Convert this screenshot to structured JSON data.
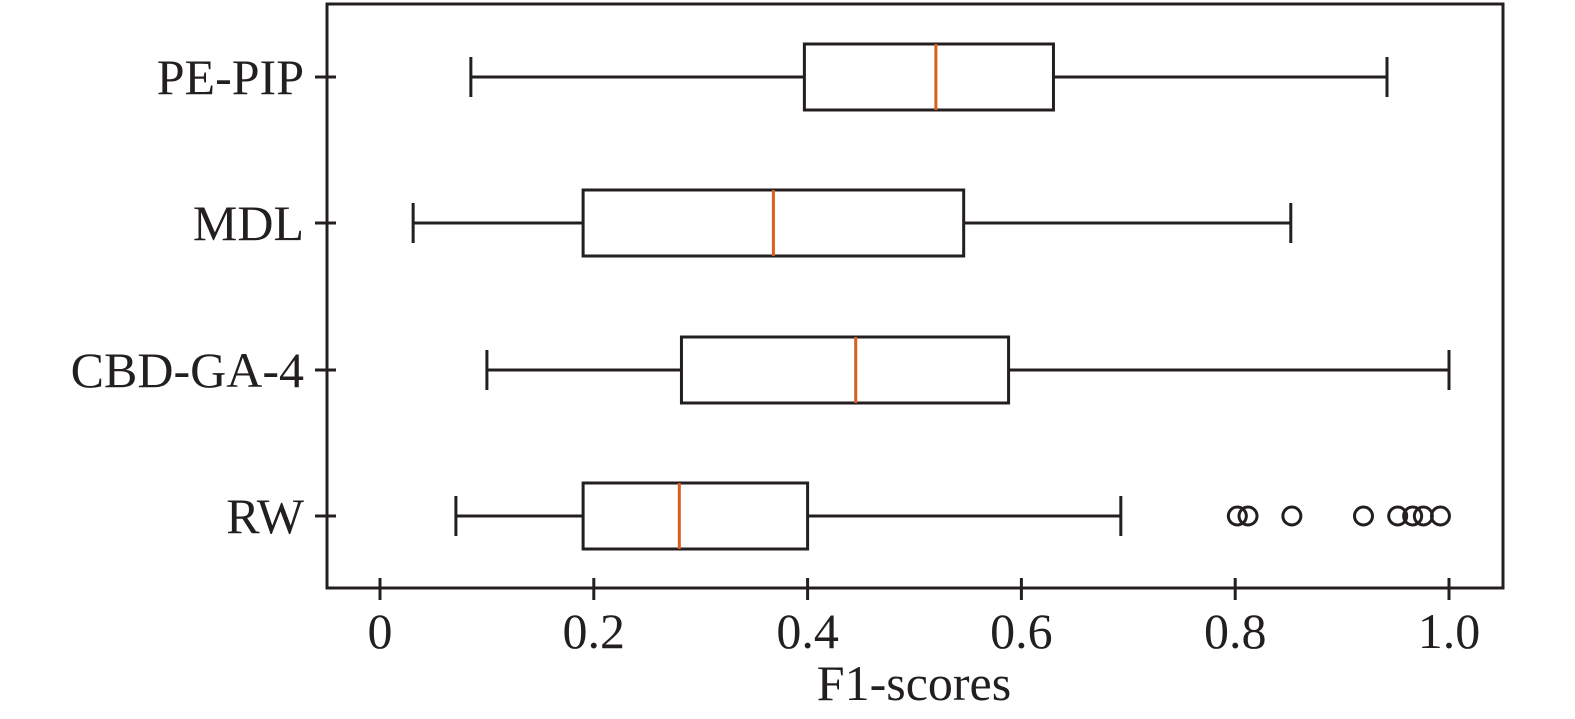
{
  "chart_data": {
    "type": "boxplot",
    "orientation": "horizontal",
    "title": "",
    "xlabel": "F1-scores",
    "ylabel": "",
    "xlim": [
      -0.05,
      1.05
    ],
    "xticks": [
      0,
      0.2,
      0.4,
      0.6,
      0.8,
      1.0
    ],
    "xtick_labels": [
      "0",
      "0.2",
      "0.4",
      "0.6",
      "0.8",
      "1.0"
    ],
    "grid": false,
    "categories": [
      "PE-PIP",
      "MDL",
      "CBD-GA-4",
      "RW"
    ],
    "series": [
      {
        "name": "PE-PIP",
        "whisker_low": 0.085,
        "q1": 0.397,
        "median": 0.52,
        "q3": 0.63,
        "whisker_high": 0.942,
        "outliers": []
      },
      {
        "name": "MDL",
        "whisker_low": 0.031,
        "q1": 0.19,
        "median": 0.368,
        "q3": 0.546,
        "whisker_high": 0.852,
        "outliers": []
      },
      {
        "name": "CBD-GA-4",
        "whisker_low": 0.1,
        "q1": 0.282,
        "median": 0.445,
        "q3": 0.588,
        "whisker_high": 1.0,
        "outliers": []
      },
      {
        "name": "RW",
        "whisker_low": 0.071,
        "q1": 0.19,
        "median": 0.28,
        "q3": 0.4,
        "whisker_high": 0.693,
        "outliers": [
          0.802,
          0.812,
          0.853,
          0.92,
          0.952,
          0.966,
          0.976,
          0.992
        ]
      }
    ],
    "colors": {
      "box": "#231f20",
      "median": "#d95f1e",
      "axis": "#231f20"
    }
  }
}
